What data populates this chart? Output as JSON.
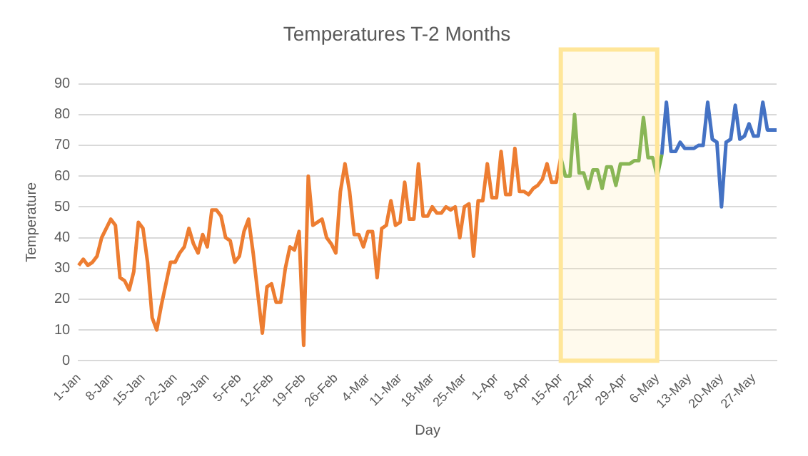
{
  "chart_data": {
    "type": "line",
    "title": "Temperatures T-2 Months",
    "xlabel": "Day",
    "ylabel": "Temperature",
    "categories": [
      "1-Jan",
      null,
      null,
      null,
      null,
      null,
      null,
      "8-Jan",
      null,
      null,
      null,
      null,
      null,
      null,
      "15-Jan",
      null,
      null,
      null,
      null,
      null,
      null,
      "22-Jan",
      null,
      null,
      null,
      null,
      null,
      null,
      "29-Jan",
      null,
      null,
      null,
      null,
      null,
      null,
      "5-Feb",
      null,
      null,
      null,
      null,
      null,
      null,
      "12-Feb",
      null,
      null,
      null,
      null,
      null,
      null,
      "19-Feb",
      null,
      null,
      null,
      null,
      null,
      null,
      "26-Feb",
      null,
      null,
      null,
      null,
      null,
      null,
      "4-Mar",
      null,
      null,
      null,
      null,
      null,
      null,
      "11-Mar",
      null,
      null,
      null,
      null,
      null,
      null,
      "18-Mar",
      null,
      null,
      null,
      null,
      null,
      null,
      "25-Mar",
      null,
      null,
      null,
      null,
      null,
      null,
      "1-Apr",
      null,
      null,
      null,
      null,
      null,
      null,
      "8-Apr",
      null,
      null,
      null,
      null,
      null,
      null,
      "15-Apr",
      null,
      null,
      null,
      null,
      null,
      null,
      "22-Apr",
      null,
      null,
      null,
      null,
      null,
      null,
      "29-Apr",
      null,
      null,
      null,
      null,
      null,
      null,
      "6-May",
      null,
      null,
      null,
      null,
      null,
      null,
      "13-May",
      null,
      null,
      null,
      null,
      null,
      null,
      "20-May",
      null,
      null,
      null,
      null,
      null,
      null,
      "27-May",
      null,
      null,
      null,
      null,
      null
    ],
    "series": [
      {
        "color": "#ed7d31",
        "values": [
          31,
          33,
          31,
          32,
          34,
          40,
          43,
          46,
          44,
          27,
          26,
          23,
          29,
          45,
          43,
          32,
          14,
          10,
          18,
          25,
          32,
          32,
          35,
          37,
          43,
          38,
          35,
          41,
          37,
          49,
          49,
          47,
          40,
          39,
          32,
          34,
          42,
          46,
          35,
          22,
          9,
          24,
          25,
          19,
          19,
          30,
          37,
          36,
          42,
          5,
          60,
          44,
          45,
          46,
          40,
          38,
          35,
          55,
          64,
          55,
          41,
          41,
          37,
          42,
          42,
          27,
          43,
          44,
          52,
          44,
          45,
          58,
          46,
          46,
          64,
          47,
          47,
          50,
          48,
          48,
          50,
          49,
          50,
          40,
          50,
          51,
          34,
          52,
          52,
          64,
          53,
          53,
          68,
          54,
          54,
          69,
          55,
          55,
          54,
          56,
          57,
          59,
          64,
          58,
          58,
          66,
          null,
          null,
          null,
          null,
          null,
          null,
          null,
          null,
          null,
          null,
          null,
          null,
          null,
          null,
          null,
          null,
          null,
          null,
          null,
          null,
          null,
          null,
          null,
          null,
          null,
          null,
          null,
          null,
          null,
          null,
          null,
          null,
          null,
          null,
          null,
          null,
          null,
          null,
          null,
          null,
          null,
          null,
          null,
          null,
          null,
          null,
          null
        ]
      },
      {
        "color": "#70ad47",
        "values": [
          null,
          null,
          null,
          null,
          null,
          null,
          null,
          null,
          null,
          null,
          null,
          null,
          null,
          null,
          null,
          null,
          null,
          null,
          null,
          null,
          null,
          null,
          null,
          null,
          null,
          null,
          null,
          null,
          null,
          null,
          null,
          null,
          null,
          null,
          null,
          null,
          null,
          null,
          null,
          null,
          null,
          null,
          null,
          null,
          null,
          null,
          null,
          null,
          null,
          null,
          null,
          null,
          null,
          null,
          null,
          null,
          null,
          null,
          null,
          null,
          null,
          null,
          null,
          null,
          null,
          null,
          null,
          null,
          null,
          null,
          null,
          null,
          null,
          null,
          null,
          null,
          null,
          null,
          null,
          null,
          null,
          null,
          null,
          null,
          null,
          null,
          null,
          null,
          null,
          null,
          null,
          null,
          null,
          null,
          null,
          null,
          null,
          null,
          null,
          null,
          null,
          null,
          null,
          null,
          null,
          66,
          60,
          60,
          80,
          61,
          61,
          56,
          62,
          62,
          56,
          63,
          63,
          57,
          64,
          64,
          64,
          65,
          65,
          79,
          66,
          66,
          60,
          67,
          null,
          null,
          null,
          null,
          null,
          null,
          null,
          null,
          null,
          null,
          null,
          null,
          null,
          null,
          null,
          null,
          null,
          null,
          null,
          null,
          null,
          null,
          null,
          null,
          null
        ]
      },
      {
        "color": "#4472c4",
        "values": [
          null,
          null,
          null,
          null,
          null,
          null,
          null,
          null,
          null,
          null,
          null,
          null,
          null,
          null,
          null,
          null,
          null,
          null,
          null,
          null,
          null,
          null,
          null,
          null,
          null,
          null,
          null,
          null,
          null,
          null,
          null,
          null,
          null,
          null,
          null,
          null,
          null,
          null,
          null,
          null,
          null,
          null,
          null,
          null,
          null,
          null,
          null,
          null,
          null,
          null,
          null,
          null,
          null,
          null,
          null,
          null,
          null,
          null,
          null,
          null,
          null,
          null,
          null,
          null,
          null,
          null,
          null,
          null,
          null,
          null,
          null,
          null,
          null,
          null,
          null,
          null,
          null,
          null,
          null,
          null,
          null,
          null,
          null,
          null,
          null,
          null,
          null,
          null,
          null,
          null,
          null,
          null,
          null,
          null,
          null,
          null,
          null,
          null,
          null,
          null,
          null,
          null,
          null,
          null,
          null,
          null,
          null,
          null,
          null,
          null,
          null,
          null,
          null,
          null,
          null,
          null,
          null,
          null,
          null,
          null,
          null,
          null,
          null,
          null,
          null,
          null,
          null,
          67,
          84,
          68,
          68,
          71,
          69,
          69,
          69,
          70,
          70,
          84,
          72,
          71,
          50,
          71,
          72,
          83,
          72,
          73,
          77,
          73,
          73,
          84,
          75,
          75,
          75
        ]
      }
    ],
    "ylim": [
      0,
      90
    ],
    "yticks": [
      0,
      10,
      20,
      30,
      40,
      50,
      60,
      70,
      80,
      90
    ],
    "grid": "y",
    "legend": false,
    "marker": "none",
    "line_style": "solid",
    "bands": [
      {
        "axis": "x",
        "from": "15-Apr",
        "to": "6-May",
        "color": "#ffe699"
      }
    ]
  }
}
